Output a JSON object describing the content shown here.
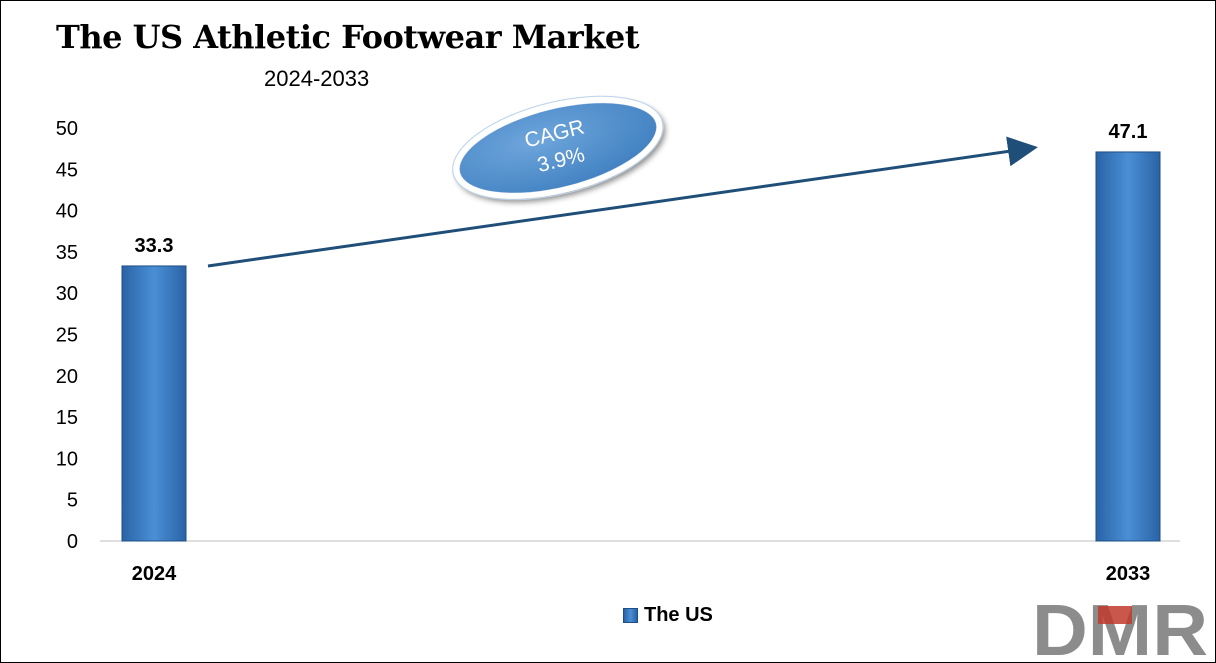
{
  "chart_data": {
    "type": "bar",
    "title": "The US Athletic Footwear Market",
    "subtitle": "2024-2033",
    "categories": [
      "2024",
      "2033"
    ],
    "series": [
      {
        "name": "The US",
        "values": [
          33.3,
          47.1
        ],
        "data_labels": [
          "33.3",
          "47.1"
        ],
        "color": "#3A7CC4"
      }
    ],
    "ylim": [
      0,
      50
    ],
    "yticks": [
      "0",
      "5",
      "10",
      "15",
      "20",
      "25",
      "30",
      "35",
      "40",
      "45",
      "50"
    ],
    "grid": false,
    "legend_position": "bottom-center",
    "annotation": {
      "line1": "CAGR",
      "line2": "3.9%",
      "color": "#4F8FD0"
    }
  },
  "logo_text": "DMR",
  "colors": {
    "bar": "#3A7CC4",
    "arrow": "#1F4E79",
    "logo_grey": "#8C8C8C",
    "logo_red": "#C0392B"
  }
}
